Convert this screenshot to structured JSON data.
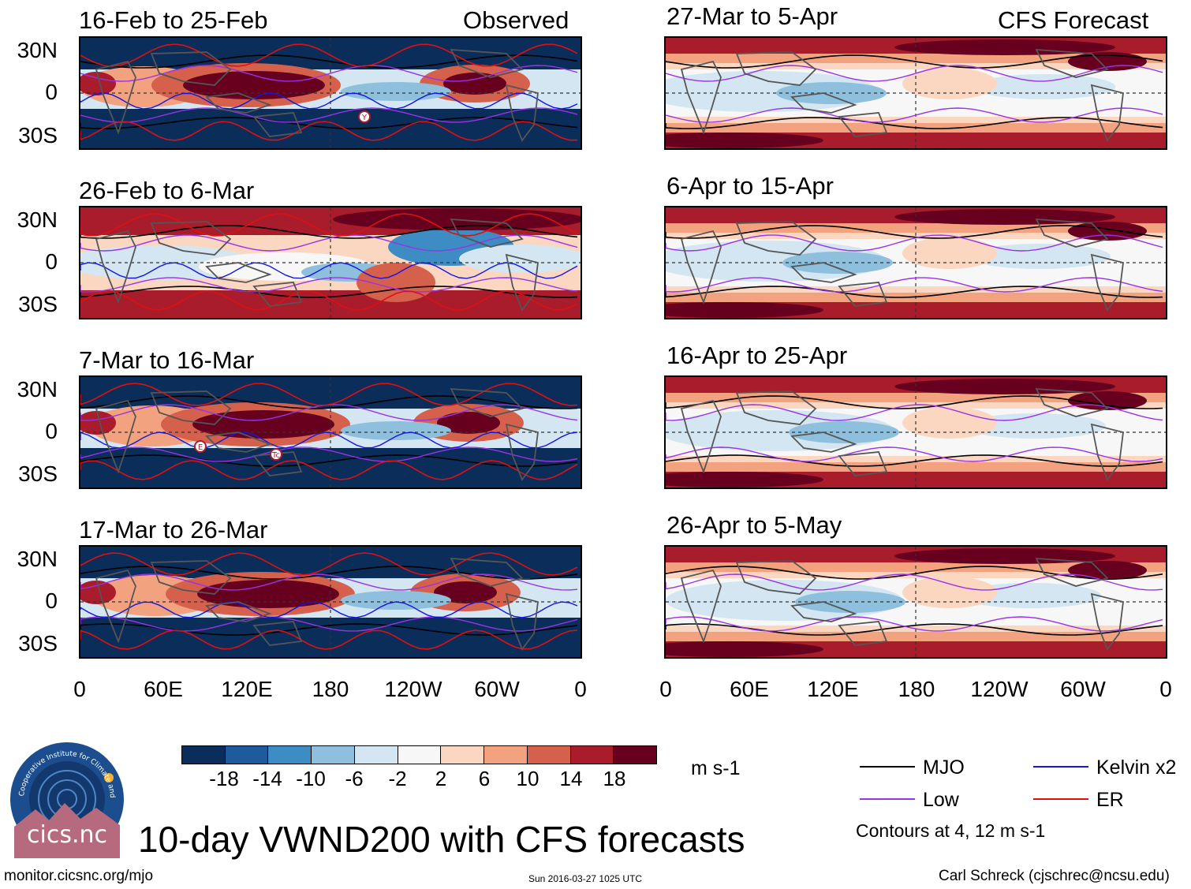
{
  "panels": {
    "left": [
      {
        "title": "16-Feb to 25-Feb",
        "label": "Observed",
        "style": "observed"
      },
      {
        "title": "26-Feb to 6-Mar",
        "label": "",
        "style": "mixed"
      },
      {
        "title": "7-Mar to 16-Mar",
        "label": "",
        "style": "observed"
      },
      {
        "title": "17-Mar to 26-Mar",
        "label": "",
        "style": "observed"
      }
    ],
    "right": [
      {
        "title": "27-Mar to 5-Apr",
        "label": "CFS Forecast",
        "style": "forecast"
      },
      {
        "title": "6-Apr to 15-Apr",
        "label": "",
        "style": "forecast"
      },
      {
        "title": "16-Apr to 25-Apr",
        "label": "",
        "style": "forecast"
      },
      {
        "title": "26-Apr to 5-May",
        "label": "",
        "style": "forecast"
      }
    ]
  },
  "lat_ticks": [
    "30N",
    "0",
    "30S"
  ],
  "lon_ticks": [
    "0",
    "60E",
    "120E",
    "180",
    "120W",
    "60W",
    "0"
  ],
  "storm_markers": [
    {
      "panel": 0,
      "text": "Y"
    },
    {
      "panel": 2,
      "text": "E"
    },
    {
      "panel": 2,
      "text": "Tc"
    }
  ],
  "colorbar": {
    "colors": [
      "#0b2d5a",
      "#1f5b9c",
      "#3d8cc4",
      "#8ec0de",
      "#d3e6f1",
      "#f7f7f7",
      "#fbd7c2",
      "#f2a27f",
      "#d5604c",
      "#a81c2c",
      "#67001f"
    ],
    "ticks": [
      "-18",
      "-14",
      "-10",
      "-6",
      "-2",
      "2",
      "6",
      "10",
      "14",
      "18"
    ],
    "units": "m s-1"
  },
  "legend": [
    {
      "label": "MJO",
      "color": "#000000"
    },
    {
      "label": "Kelvin x2",
      "color": "#1515e0"
    },
    {
      "label": "Low",
      "color": "#9a32e6"
    },
    {
      "label": "ER",
      "color": "#e01010"
    }
  ],
  "contours_note": "Contours at 4, 12 m s-1",
  "main_title": "10-day VWND200 with CFS forecasts",
  "footer": {
    "url": "monitor.cicsnc.org/mjo",
    "timestamp": "Sun 2016-03-27 1025 UTC",
    "author": "Carl Schreck (cjschrec@ncsu.edu)"
  },
  "logo": {
    "ring_text": "Cooperative Institute for Climate and Satellites",
    "name": "cics.nc"
  }
}
